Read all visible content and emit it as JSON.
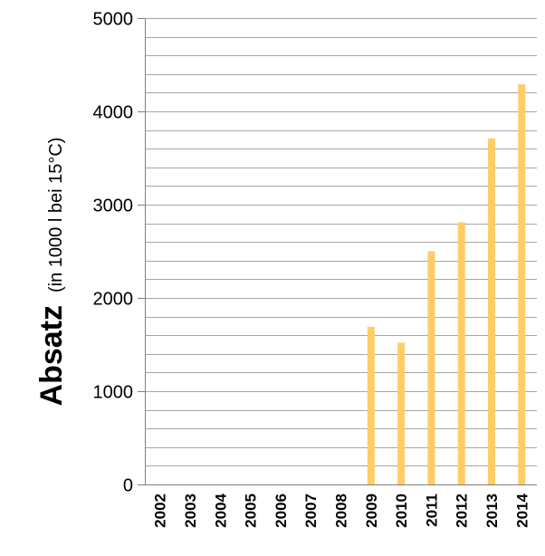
{
  "chart_data": {
    "type": "bar",
    "title": "",
    "ylabel": "Absatz",
    "ylabel_unit": "(in 1000 l bei 15°C)",
    "xlabel": "",
    "categories": [
      "2002",
      "2003",
      "2004",
      "2005",
      "2006",
      "2007",
      "2008",
      "2009",
      "2010",
      "2011",
      "2012",
      "2013",
      "2014"
    ],
    "values": [
      0,
      0,
      0,
      0,
      0,
      0,
      0,
      1690,
      1520,
      2500,
      2810,
      3710,
      4290
    ],
    "ylim": [
      0,
      5000
    ],
    "yticks": [
      "0",
      "1000",
      "2000",
      "3000",
      "4000",
      "5000"
    ],
    "minor_gridlines_per_major": 4,
    "grid": true,
    "bar_color": "#FFCC66",
    "grid_color": "#A6A6A6",
    "axis_color": "#7F7F7F"
  }
}
